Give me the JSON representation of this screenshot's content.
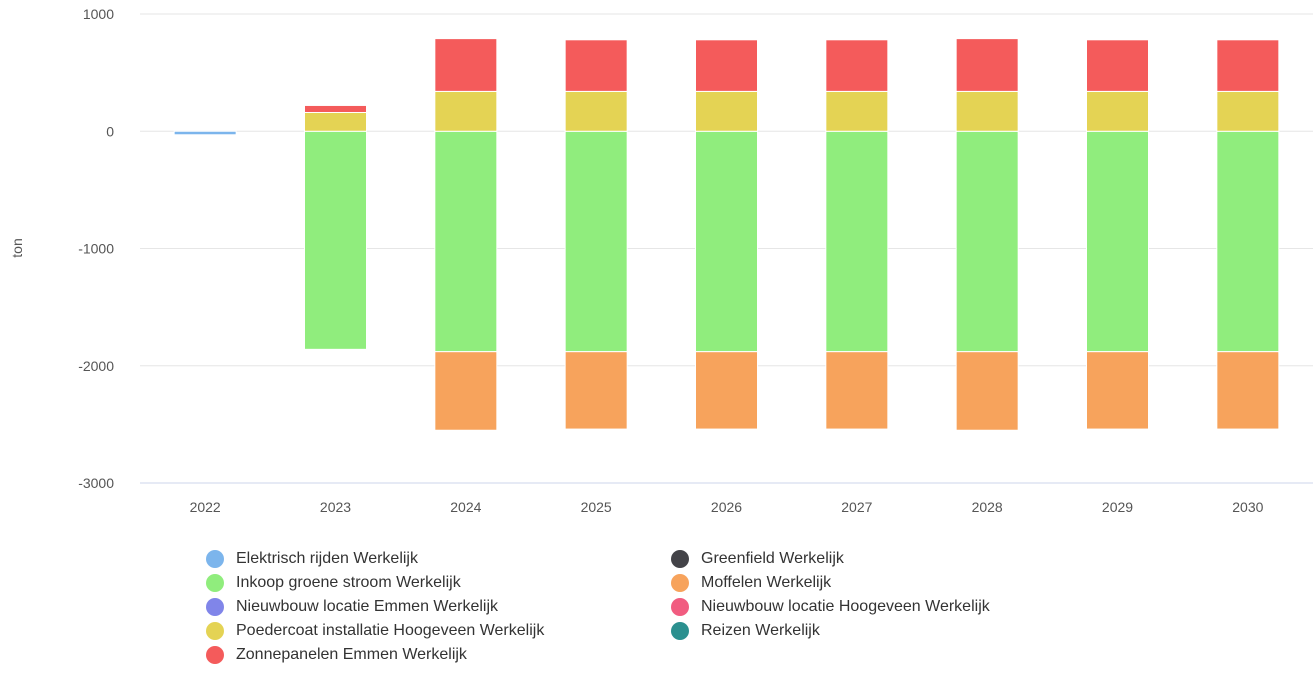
{
  "chart_data": {
    "type": "bar",
    "stacked": true,
    "title": "",
    "xlabel": "",
    "ylabel": "ton",
    "ylim": [
      -3000,
      1000
    ],
    "yticks": [
      1000,
      0,
      -1000,
      -2000,
      -3000
    ],
    "categories": [
      "2022",
      "2023",
      "2024",
      "2025",
      "2026",
      "2027",
      "2028",
      "2029",
      "2030"
    ],
    "grid": true,
    "legend_position": "bottom",
    "series": [
      {
        "name": "Elektrisch rijden Werkelijk",
        "color": "#7cb5ec",
        "values": [
          -30,
          0,
          0,
          0,
          0,
          0,
          0,
          0,
          0
        ]
      },
      {
        "name": "Greenfield Werkelijk",
        "color": "#434348",
        "values": [
          0,
          0,
          0,
          0,
          0,
          0,
          0,
          0,
          0
        ]
      },
      {
        "name": "Inkoop groene stroom Werkelijk",
        "color": "#90ed7d",
        "values": [
          0,
          -1860,
          -1880,
          -1880,
          -1880,
          -1880,
          -1880,
          -1880,
          -1880
        ]
      },
      {
        "name": "Moffelen Werkelijk",
        "color": "#f7a35c",
        "values": [
          0,
          0,
          -670,
          -660,
          -660,
          -660,
          -670,
          -660,
          -660
        ]
      },
      {
        "name": "Nieuwbouw locatie Emmen Werkelijk",
        "color": "#8085e9",
        "values": [
          0,
          0,
          0,
          0,
          0,
          0,
          0,
          0,
          0
        ]
      },
      {
        "name": "Nieuwbouw locatie Hoogeveen Werkelijk",
        "color": "#f15c80",
        "values": [
          0,
          0,
          0,
          0,
          0,
          0,
          0,
          0,
          0
        ]
      },
      {
        "name": "Poedercoat installatie Hoogeveen Werkelijk",
        "color": "#e4d354",
        "values": [
          0,
          160,
          340,
          340,
          340,
          340,
          340,
          340,
          340
        ]
      },
      {
        "name": "Reizen Werkelijk",
        "color": "#2b908f",
        "values": [
          0,
          0,
          0,
          0,
          0,
          0,
          0,
          0,
          0
        ]
      },
      {
        "name": "Zonnepanelen Emmen Werkelijk",
        "color": "#f45b5b",
        "values": [
          0,
          60,
          450,
          440,
          440,
          440,
          450,
          440,
          440
        ]
      }
    ]
  }
}
